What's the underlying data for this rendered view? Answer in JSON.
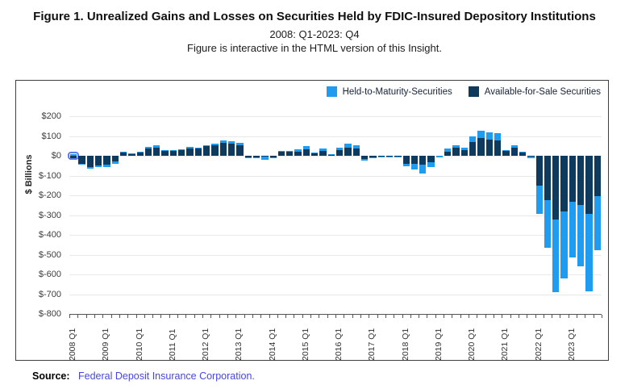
{
  "header": {
    "title": "Figure 1. Unrealized Gains and Losses on Securities Held by FDIC-Insured Depository Institutions",
    "subtitle": "2008: Q1-2023: Q4",
    "note": "Figure is interactive in the HTML version of this Insight."
  },
  "footer": {
    "source_label": "Source:",
    "source_link": "Federal Deposit Insurance Corporation."
  },
  "chart_data": {
    "type": "bar",
    "stacked": true,
    "title": "Unrealized Gains and Losses on Securities Held by FDIC-Insured Depository Institutions",
    "xlabel": "",
    "ylabel": "$ Billions",
    "ylim": [
      -800,
      200
    ],
    "ytick_values": [
      200,
      100,
      0,
      -100,
      -200,
      -300,
      -400,
      -500,
      -600,
      -700,
      -800
    ],
    "ytick_labels": [
      "$200",
      "$100",
      "$0",
      "$-100",
      "$-200",
      "$-300",
      "$-400",
      "$-500",
      "$-600",
      "$-700",
      "$-800"
    ],
    "grid": true,
    "legend_position": "top-right",
    "units": "$ Billions",
    "categories": [
      "2008 Q1",
      "2008 Q2",
      "2008 Q3",
      "2008 Q4",
      "2009 Q1",
      "2009 Q2",
      "2009 Q3",
      "2009 Q4",
      "2010 Q1",
      "2010 Q2",
      "2010 Q3",
      "2010 Q4",
      "2011 Q1",
      "2011 Q2",
      "2011 Q3",
      "2011 Q4",
      "2012 Q1",
      "2012 Q2",
      "2012 Q3",
      "2012 Q4",
      "2013 Q1",
      "2013 Q2",
      "2013 Q3",
      "2013 Q4",
      "2014 Q1",
      "2014 Q2",
      "2014 Q3",
      "2014 Q4",
      "2015 Q1",
      "2015 Q2",
      "2015 Q3",
      "2015 Q4",
      "2016 Q1",
      "2016 Q2",
      "2016 Q3",
      "2016 Q4",
      "2017 Q1",
      "2017 Q2",
      "2017 Q3",
      "2017 Q4",
      "2018 Q1",
      "2018 Q2",
      "2018 Q3",
      "2018 Q4",
      "2019 Q1",
      "2019 Q2",
      "2019 Q3",
      "2019 Q4",
      "2020 Q1",
      "2020 Q2",
      "2020 Q3",
      "2020 Q4",
      "2021 Q1",
      "2021 Q2",
      "2021 Q3",
      "2021 Q4",
      "2022 Q1",
      "2022 Q2",
      "2022 Q3",
      "2022 Q4",
      "2023 Q1",
      "2023 Q2",
      "2023 Q3",
      "2023 Q4"
    ],
    "xtick_shown_indices": [
      0,
      4,
      8,
      12,
      16,
      20,
      24,
      28,
      32,
      36,
      40,
      44,
      48,
      52,
      56,
      60
    ],
    "series": [
      {
        "name": "Held-to-Maturity-Securities",
        "color": "#1f9cf0",
        "values": [
          10,
          -5,
          -8,
          -9,
          -12,
          -9,
          2,
          1,
          2,
          11,
          10,
          4,
          3,
          3,
          8,
          4,
          4,
          11,
          12,
          12,
          12,
          -4,
          -5,
          -14,
          -1,
          2,
          2,
          9,
          16,
          2,
          11,
          1,
          14,
          21,
          18,
          -8,
          -6,
          -2,
          -2,
          -4,
          -16,
          -31,
          -44,
          -23,
          -5,
          13,
          13,
          12,
          30,
          38,
          37,
          38,
          3,
          10,
          2,
          -8,
          -145,
          -240,
          -369,
          -341,
          -284,
          -310,
          -390,
          -274
        ]
      },
      {
        "name": "Available-for-Sale Securities",
        "color": "#0d3a5d",
        "values": [
          -20,
          -40,
          -56,
          -50,
          -44,
          -30,
          18,
          10,
          20,
          35,
          42,
          24,
          27,
          28,
          37,
          38,
          48,
          52,
          67,
          61,
          53,
          -8,
          -8,
          -5,
          -9,
          21,
          24,
          22,
          33,
          14,
          24,
          9,
          28,
          42,
          35,
          -15,
          -8,
          -3,
          -6,
          -3,
          -39,
          -39,
          -46,
          -33,
          -2,
          22,
          39,
          30,
          69,
          90,
          83,
          76,
          24,
          42,
          20,
          -3,
          -150,
          -225,
          -321,
          -280,
          -232,
          -249,
          -294,
          -203
        ]
      }
    ],
    "stack_from_zero_order": [
      1,
      0
    ],
    "highlighted_bar": {
      "category": "2008 Q1",
      "series": "Held-to-Maturity-Securities",
      "ring_color": "#5c7bee"
    },
    "colors": {
      "gridline": "#e9e9e9",
      "axis": "#555555",
      "highlight_ring": "#5c7bee"
    }
  }
}
